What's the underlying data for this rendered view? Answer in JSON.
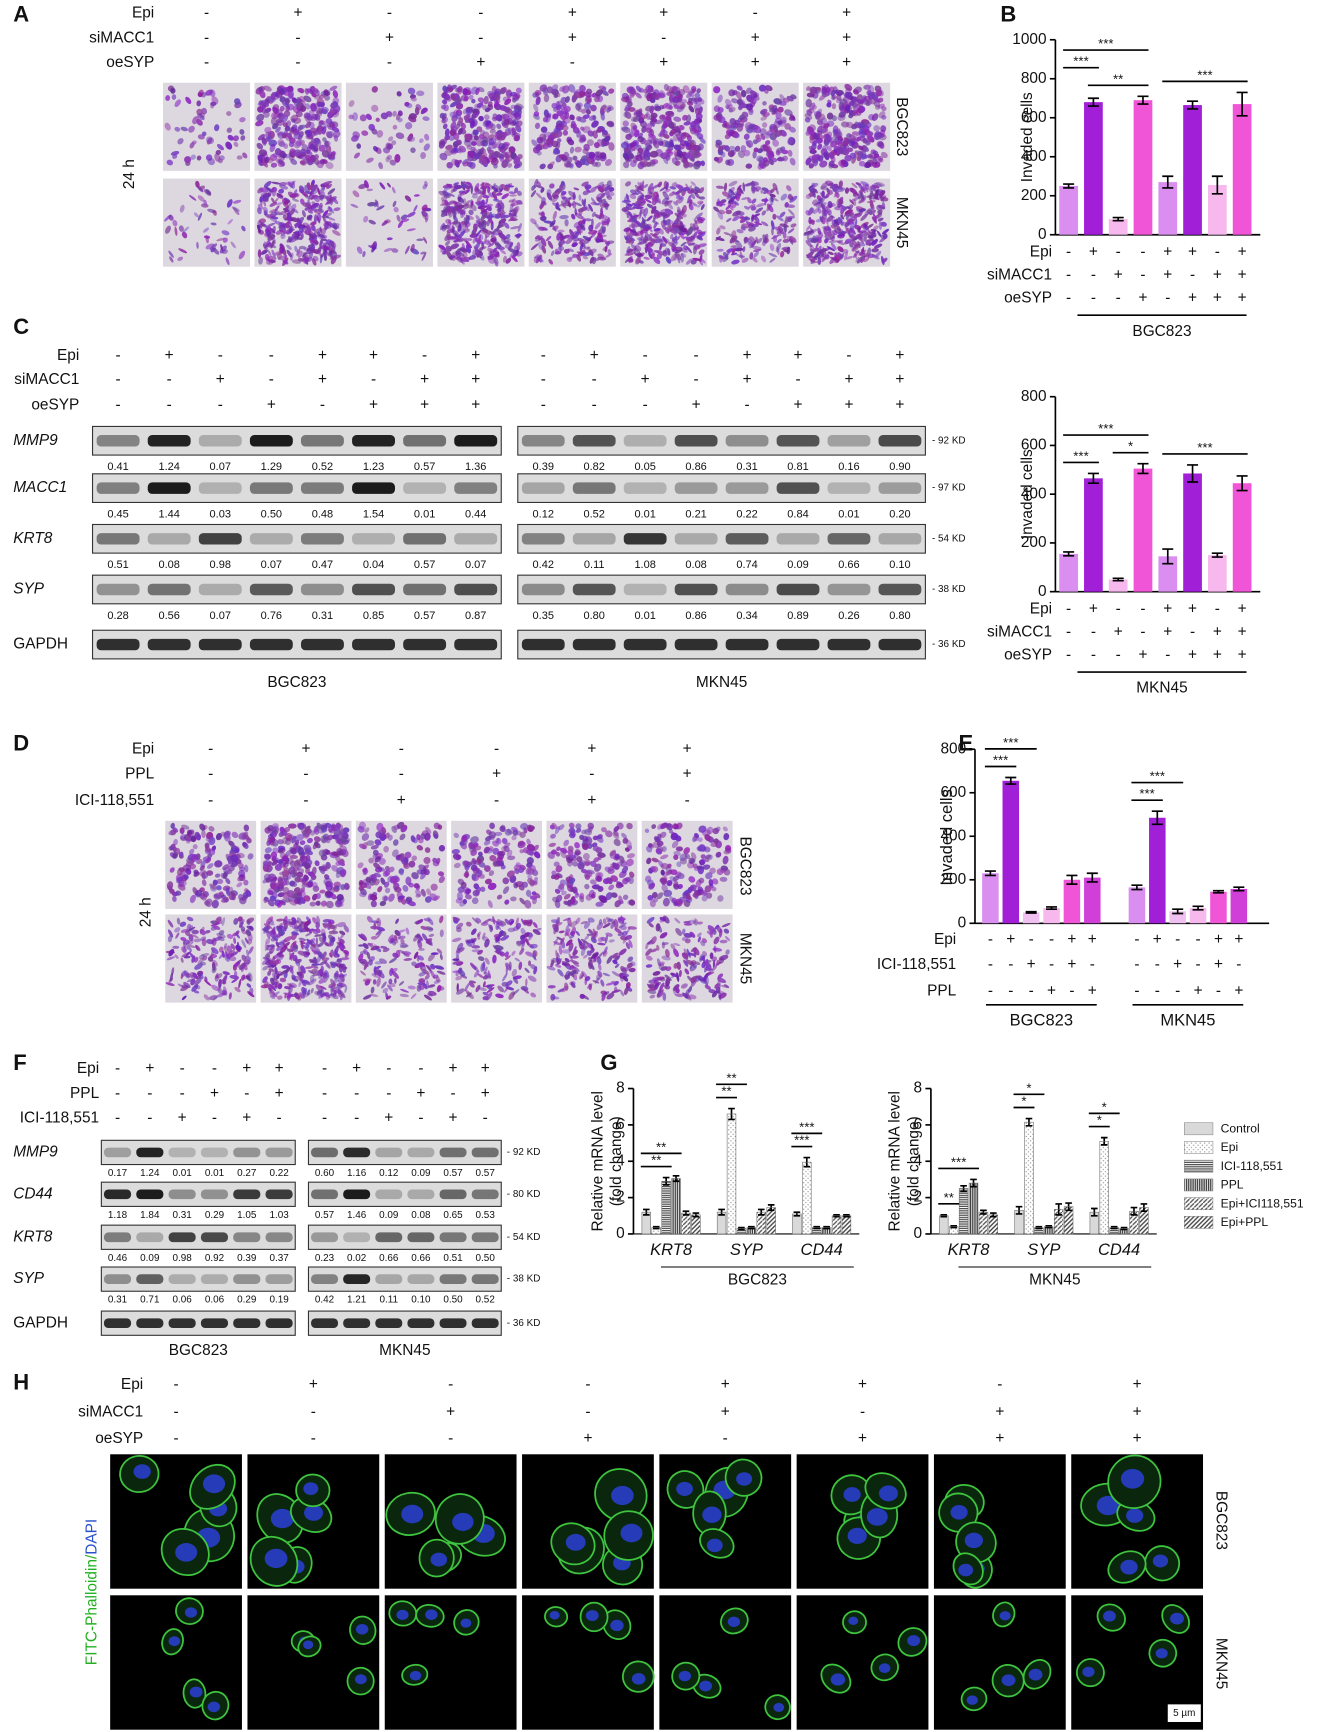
{
  "panel_labels": [
    "A",
    "B",
    "C",
    "D",
    "E",
    "F",
    "G",
    "H"
  ],
  "A": {
    "conditions": [
      {
        "name": "Epi",
        "signs": [
          "-",
          "+",
          "-",
          "-",
          "+",
          "+",
          "-",
          "+"
        ]
      },
      {
        "name": "siMACC1",
        "signs": [
          "-",
          "-",
          "+",
          "-",
          "+",
          "-",
          "+",
          "+"
        ]
      },
      {
        "name": "oeSYP",
        "signs": [
          "-",
          "-",
          "-",
          "+",
          "-",
          "+",
          "+",
          "+"
        ]
      }
    ],
    "time": "24 h",
    "rows": [
      "BGC823",
      "MKN45"
    ]
  },
  "B": {
    "charts": [
      {
        "ylabel": "Invaded cells",
        "ylim": [
          0,
          1000
        ],
        "yticks": [
          0,
          200,
          400,
          600,
          800,
          1000
        ],
        "values": [
          250,
          680,
          80,
          690,
          270,
          665,
          255,
          670
        ],
        "errors": [
          10,
          20,
          8,
          20,
          30,
          20,
          45,
          60
        ],
        "colors": [
          "#d98ef0",
          "#a21fd8",
          "#f7b8ee",
          "#f055d8",
          "#d98ef0",
          "#a21fd8",
          "#f7b8ee",
          "#f055d8"
        ],
        "conditions": [
          {
            "name": "Epi",
            "signs": [
              "-",
              "+",
              "-",
              "-",
              "+",
              "+",
              "-",
              "+"
            ]
          },
          {
            "name": "siMACC1",
            "signs": [
              "-",
              "-",
              "+",
              "-",
              "+",
              "-",
              "+",
              "+"
            ]
          },
          {
            "name": "oeSYP",
            "signs": [
              "-",
              "-",
              "-",
              "+",
              "-",
              "+",
              "+",
              "+"
            ]
          }
        ],
        "group": "BGC823",
        "significance": [
          {
            "from": 1,
            "to": 3,
            "label": "**"
          },
          {
            "from": 0,
            "to": 1,
            "label": "***"
          },
          {
            "from": 0,
            "to": 3,
            "label": "***"
          },
          {
            "from": 4,
            "to": 7,
            "label": "***"
          }
        ]
      },
      {
        "ylabel": "Invaded cells",
        "ylim": [
          0,
          800
        ],
        "yticks": [
          0,
          200,
          400,
          600,
          800
        ],
        "values": [
          155,
          465,
          50,
          505,
          145,
          485,
          150,
          445
        ],
        "errors": [
          8,
          20,
          5,
          20,
          30,
          35,
          8,
          30
        ],
        "colors": [
          "#d98ef0",
          "#a21fd8",
          "#f7b8ee",
          "#f055d8",
          "#d98ef0",
          "#a21fd8",
          "#f7b8ee",
          "#f055d8"
        ],
        "conditions": [
          {
            "name": "Epi",
            "signs": [
              "-",
              "+",
              "-",
              "-",
              "+",
              "+",
              "-",
              "+"
            ]
          },
          {
            "name": "siMACC1",
            "signs": [
              "-",
              "-",
              "+",
              "-",
              "+",
              "-",
              "+",
              "+"
            ]
          },
          {
            "name": "oeSYP",
            "signs": [
              "-",
              "-",
              "-",
              "+",
              "-",
              "+",
              "+",
              "+"
            ]
          }
        ],
        "group": "MKN45",
        "significance": [
          {
            "from": 2,
            "to": 3,
            "label": "*"
          },
          {
            "from": 0,
            "to": 1,
            "label": "***"
          },
          {
            "from": 0,
            "to": 3,
            "label": "***"
          },
          {
            "from": 4,
            "to": 7,
            "label": "***"
          }
        ]
      }
    ]
  },
  "C": {
    "conditions": [
      {
        "name": "Epi",
        "signs": [
          "-",
          "+",
          "-",
          "-",
          "+",
          "+",
          "-",
          "+"
        ]
      },
      {
        "name": "siMACC1",
        "signs": [
          "-",
          "-",
          "+",
          "-",
          "+",
          "-",
          "+",
          "+"
        ]
      },
      {
        "name": "oeSYP",
        "signs": [
          "-",
          "-",
          "-",
          "+",
          "-",
          "+",
          "+",
          "+"
        ]
      }
    ],
    "loading": "GAPDH",
    "blots": [
      {
        "cell_line": "BGC823",
        "rows": [
          {
            "protein": "MMP9",
            "values": [
              "0.41",
              "1.24",
              "0.07",
              "1.29",
              "0.52",
              "1.23",
              "0.57",
              "1.36"
            ]
          },
          {
            "protein": "MACC1",
            "values": [
              "0.45",
              "1.44",
              "0.03",
              "0.50",
              "0.48",
              "1.54",
              "0.01",
              "0.44"
            ]
          },
          {
            "protein": "KRT8",
            "values": [
              "0.51",
              "0.08",
              "0.98",
              "0.07",
              "0.47",
              "0.04",
              "0.57",
              "0.07"
            ]
          },
          {
            "protein": "SYP",
            "values": [
              "0.28",
              "0.56",
              "0.07",
              "0.76",
              "0.31",
              "0.85",
              "0.57",
              "0.87"
            ]
          }
        ]
      },
      {
        "cell_line": "MKN45",
        "rows": [
          {
            "protein": "MMP9",
            "values": [
              "0.39",
              "0.82",
              "0.05",
              "0.86",
              "0.31",
              "0.81",
              "0.16",
              "0.90"
            ]
          },
          {
            "protein": "MACC1",
            "values": [
              "0.12",
              "0.52",
              "0.01",
              "0.21",
              "0.22",
              "0.84",
              "0.01",
              "0.20"
            ]
          },
          {
            "protein": "KRT8",
            "values": [
              "0.42",
              "0.11",
              "1.08",
              "0.08",
              "0.74",
              "0.09",
              "0.66",
              "0.10"
            ]
          },
          {
            "protein": "SYP",
            "values": [
              "0.35",
              "0.80",
              "0.01",
              "0.86",
              "0.34",
              "0.89",
              "0.26",
              "0.80"
            ]
          }
        ]
      }
    ],
    "sizes": [
      "- 92 KD",
      "- 97 KD",
      "- 54 KD",
      "- 38 KD",
      "- 36 KD"
    ]
  },
  "D": {
    "conditions": [
      {
        "name": "Epi",
        "signs": [
          "-",
          "+",
          "-",
          "-",
          "+",
          "+"
        ]
      },
      {
        "name": "PPL",
        "signs": [
          "-",
          "-",
          "-",
          "+",
          "-",
          "+"
        ]
      },
      {
        "name": "ICI-118,551",
        "signs": [
          "-",
          "-",
          "+",
          "-",
          "+",
          "-"
        ]
      }
    ],
    "time": "24 h",
    "rows": [
      "BGC823",
      "MKN45"
    ]
  },
  "E": {
    "ylabel": "Invaded cells",
    "ylim": [
      0,
      800
    ],
    "yticks": [
      0,
      200,
      400,
      600,
      800
    ],
    "colors": [
      "#d98ef0",
      "#a21fd8",
      "#f0c0f0",
      "#f7b8ee",
      "#f055d8",
      "#d040d8"
    ],
    "groups": [
      {
        "name": "BGC823",
        "values": [
          230,
          655,
          50,
          70,
          200,
          210
        ],
        "errors": [
          10,
          15,
          3,
          5,
          20,
          20
        ]
      },
      {
        "name": "MKN45",
        "values": [
          165,
          485,
          55,
          70,
          145,
          158
        ],
        "errors": [
          10,
          30,
          10,
          8,
          5,
          8
        ]
      }
    ],
    "conditions": [
      {
        "name": "Epi",
        "signs": [
          "-",
          "+",
          "-",
          "-",
          "+",
          "+"
        ]
      },
      {
        "name": "ICI-118,551",
        "signs": [
          "-",
          "-",
          "+",
          "-",
          "+",
          "-"
        ]
      },
      {
        "name": "PPL",
        "signs": [
          "-",
          "-",
          "-",
          "+",
          "-",
          "+"
        ]
      }
    ],
    "significance": [
      {
        "group": 0,
        "from": 0,
        "to": 1,
        "label": "***"
      },
      {
        "group": 0,
        "from": 0,
        "to": 2,
        "label": "***"
      },
      {
        "group": 1,
        "from": 0,
        "to": 1,
        "label": "***"
      },
      {
        "group": 1,
        "from": 0,
        "to": 2,
        "label": "***"
      }
    ]
  },
  "F": {
    "conditions": [
      {
        "name": "Epi",
        "signs": [
          "-",
          "+",
          "-",
          "-",
          "+",
          "+"
        ]
      },
      {
        "name": "PPL",
        "signs": [
          "-",
          "-",
          "-",
          "+",
          "-",
          "+"
        ]
      },
      {
        "name": "ICI-118,551",
        "signs": [
          "-",
          "-",
          "+",
          "-",
          "+",
          "-"
        ]
      }
    ],
    "loading": "GAPDH",
    "blots": [
      {
        "cell_line": "BGC823",
        "rows": [
          {
            "protein": "MMP9",
            "values": [
              "0.17",
              "1.24",
              "0.01",
              "0.01",
              "0.27",
              "0.22"
            ]
          },
          {
            "protein": "CD44",
            "values": [
              "1.18",
              "1.84",
              "0.31",
              "0.29",
              "1.05",
              "1.03"
            ]
          },
          {
            "protein": "KRT8",
            "values": [
              "0.46",
              "0.09",
              "0.98",
              "0.92",
              "0.39",
              "0.37"
            ]
          },
          {
            "protein": "SYP",
            "values": [
              "0.31",
              "0.71",
              "0.06",
              "0.06",
              "0.29",
              "0.19"
            ]
          }
        ]
      },
      {
        "cell_line": "MKN45",
        "rows": [
          {
            "protein": "MMP9",
            "values": [
              "0.60",
              "1.16",
              "0.12",
              "0.09",
              "0.57",
              "0.57"
            ]
          },
          {
            "protein": "CD44",
            "values": [
              "0.57",
              "1.46",
              "0.09",
              "0.08",
              "0.65",
              "0.53"
            ]
          },
          {
            "protein": "KRT8",
            "values": [
              "0.23",
              "0.02",
              "0.66",
              "0.66",
              "0.51",
              "0.50"
            ]
          },
          {
            "protein": "SYP",
            "values": [
              "0.42",
              "1.21",
              "0.11",
              "0.10",
              "0.50",
              "0.52"
            ]
          }
        ]
      }
    ],
    "sizes": [
      "- 92 KD",
      "- 80 KD",
      "- 54 KD",
      "- 38 KD",
      "- 36 KD"
    ]
  },
  "G": {
    "ylabel": [
      "Relative mRNA level",
      "(fold change)"
    ],
    "ylim": [
      0,
      8
    ],
    "yticks": [
      0,
      2,
      4,
      6,
      8
    ],
    "genes": [
      "KRT8",
      "SYP",
      "CD44"
    ],
    "series": [
      {
        "name": "Control",
        "color": "#d9d9d9",
        "pattern": "solid"
      },
      {
        "name": "Epi",
        "color": "#8c8c8c",
        "pattern": "dots"
      },
      {
        "name": "ICI-118,551",
        "color": "#4d4d4d",
        "pattern": "hstripes"
      },
      {
        "name": "PPL",
        "color": "#3a3a3a",
        "pattern": "vstripes"
      },
      {
        "name": "Epi+ICI118,551",
        "color": "#555555",
        "pattern": "diag"
      },
      {
        "name": "Epi+PPL",
        "color": "#404040",
        "pattern": "diag2"
      }
    ],
    "panels": [
      {
        "cell_line": "BGC823",
        "values": [
          [
            1.2,
            1.2,
            1.1
          ],
          [
            0.35,
            6.6,
            3.95
          ],
          [
            2.9,
            0.3,
            0.35
          ],
          [
            3.05,
            0.35,
            0.35
          ],
          [
            1.15,
            1.2,
            1.0
          ],
          [
            1.05,
            1.45,
            1.0
          ]
        ],
        "errors": [
          [
            0.15,
            0.15,
            0.1
          ],
          [
            0.05,
            0.3,
            0.25
          ],
          [
            0.2,
            0.05,
            0.05
          ],
          [
            0.15,
            0.05,
            0.05
          ],
          [
            0.1,
            0.15,
            0.05
          ],
          [
            0.1,
            0.15,
            0.05
          ]
        ],
        "significance": [
          {
            "gene": 0,
            "from": 0,
            "to": 2,
            "label": "**"
          },
          {
            "gene": 0,
            "from": 0,
            "to": 3,
            "label": "**"
          },
          {
            "gene": 1,
            "from": 0,
            "to": 1,
            "label": "**"
          },
          {
            "gene": 1,
            "from": 0,
            "to": 2,
            "label": "**"
          },
          {
            "gene": 2,
            "from": 0,
            "to": 1,
            "label": "***"
          },
          {
            "gene": 2,
            "from": 0,
            "to": 2,
            "label": "***"
          }
        ]
      },
      {
        "cell_line": "MKN45",
        "values": [
          [
            1.0,
            1.3,
            1.2
          ],
          [
            0.4,
            6.15,
            5.1
          ],
          [
            2.5,
            0.35,
            0.35
          ],
          [
            2.8,
            0.4,
            0.3
          ],
          [
            1.2,
            1.35,
            1.25
          ],
          [
            1.05,
            1.5,
            1.45
          ]
        ],
        "errors": [
          [
            0.05,
            0.2,
            0.2
          ],
          [
            0.05,
            0.2,
            0.2
          ],
          [
            0.15,
            0.05,
            0.05
          ],
          [
            0.2,
            0.05,
            0.05
          ],
          [
            0.1,
            0.3,
            0.2
          ],
          [
            0.1,
            0.2,
            0.2
          ]
        ],
        "significance": [
          {
            "gene": 0,
            "from": 0,
            "to": 1,
            "label": "**"
          },
          {
            "gene": 0,
            "from": 0,
            "to": 3,
            "label": "***"
          },
          {
            "gene": 1,
            "from": 0,
            "to": 1,
            "label": "*"
          },
          {
            "gene": 1,
            "from": 0,
            "to": 2,
            "label": "*"
          },
          {
            "gene": 2,
            "from": 0,
            "to": 1,
            "label": "*"
          },
          {
            "gene": 2,
            "from": 0,
            "to": 2,
            "label": "*"
          }
        ]
      }
    ]
  },
  "H": {
    "conditions": [
      {
        "name": "Epi",
        "signs": [
          "-",
          "+",
          "-",
          "-",
          "+",
          "+",
          "-",
          "+"
        ]
      },
      {
        "name": "siMACC1",
        "signs": [
          "-",
          "-",
          "+",
          "-",
          "+",
          "-",
          "+",
          "+"
        ]
      },
      {
        "name": "oeSYP",
        "signs": [
          "-",
          "-",
          "-",
          "+",
          "-",
          "+",
          "+",
          "+"
        ]
      }
    ],
    "stain": [
      "FITC-Phalloidin/",
      "DAPI"
    ],
    "rows": [
      "BGC823",
      "MKN45"
    ],
    "scale": "5 µm"
  }
}
